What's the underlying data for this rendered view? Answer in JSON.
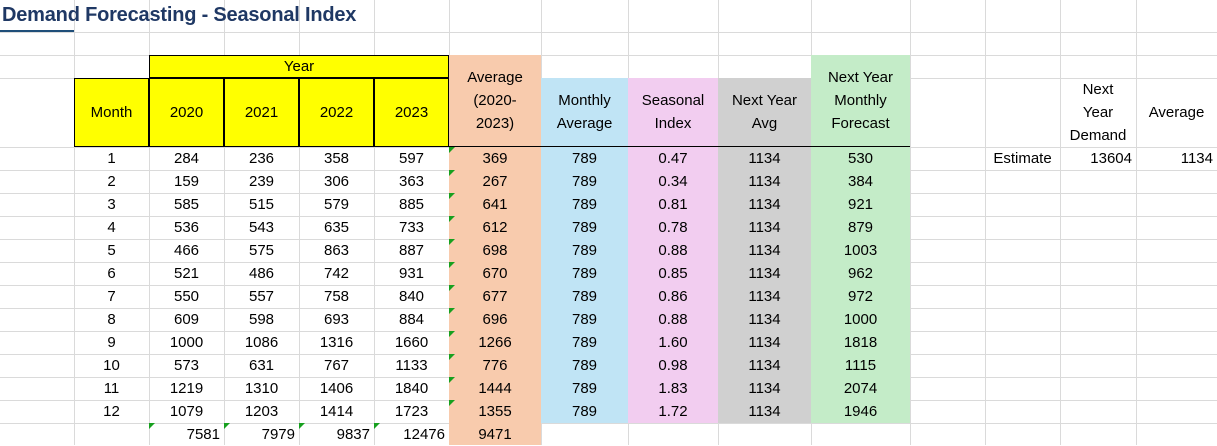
{
  "sheet": {
    "title": "Demand Forecasting - Seasonal Index"
  },
  "colors": {
    "yellow": "#ffff00",
    "orange": "#f8cbad",
    "blue": "#c0e4f5",
    "pink": "#f2cdf0",
    "gray": "#d0d0d0",
    "green": "#c4ecc8",
    "title": "#1f3864"
  },
  "headers": {
    "year": "Year",
    "month": "Month",
    "years": [
      "2020",
      "2021",
      "2022",
      "2023"
    ],
    "average": "Average (2020-2023)",
    "monthly_average": "Monthly Average",
    "seasonal_index": "Seasonal Index",
    "next_year_avg": "Next Year Avg",
    "next_year_forecast": "Next Year Monthly Forecast"
  },
  "rows": [
    {
      "month": "1",
      "y2020": "284",
      "y2021": "236",
      "y2022": "358",
      "y2023": "597",
      "avg": "369",
      "mavg": "789",
      "si": "0.47",
      "nya": "1134",
      "fc": "530"
    },
    {
      "month": "2",
      "y2020": "159",
      "y2021": "239",
      "y2022": "306",
      "y2023": "363",
      "avg": "267",
      "mavg": "789",
      "si": "0.34",
      "nya": "1134",
      "fc": "384"
    },
    {
      "month": "3",
      "y2020": "585",
      "y2021": "515",
      "y2022": "579",
      "y2023": "885",
      "avg": "641",
      "mavg": "789",
      "si": "0.81",
      "nya": "1134",
      "fc": "921"
    },
    {
      "month": "4",
      "y2020": "536",
      "y2021": "543",
      "y2022": "635",
      "y2023": "733",
      "avg": "612",
      "mavg": "789",
      "si": "0.78",
      "nya": "1134",
      "fc": "879"
    },
    {
      "month": "5",
      "y2020": "466",
      "y2021": "575",
      "y2022": "863",
      "y2023": "887",
      "avg": "698",
      "mavg": "789",
      "si": "0.88",
      "nya": "1134",
      "fc": "1003"
    },
    {
      "month": "6",
      "y2020": "521",
      "y2021": "486",
      "y2022": "742",
      "y2023": "931",
      "avg": "670",
      "mavg": "789",
      "si": "0.85",
      "nya": "1134",
      "fc": "962"
    },
    {
      "month": "7",
      "y2020": "550",
      "y2021": "557",
      "y2022": "758",
      "y2023": "840",
      "avg": "677",
      "mavg": "789",
      "si": "0.86",
      "nya": "1134",
      "fc": "972"
    },
    {
      "month": "8",
      "y2020": "609",
      "y2021": "598",
      "y2022": "693",
      "y2023": "884",
      "avg": "696",
      "mavg": "789",
      "si": "0.88",
      "nya": "1134",
      "fc": "1000"
    },
    {
      "month": "9",
      "y2020": "1000",
      "y2021": "1086",
      "y2022": "1316",
      "y2023": "1660",
      "avg": "1266",
      "mavg": "789",
      "si": "1.60",
      "nya": "1134",
      "fc": "1818"
    },
    {
      "month": "10",
      "y2020": "573",
      "y2021": "631",
      "y2022": "767",
      "y2023": "1133",
      "avg": "776",
      "mavg": "789",
      "si": "0.98",
      "nya": "1134",
      "fc": "1115"
    },
    {
      "month": "11",
      "y2020": "1219",
      "y2021": "1310",
      "y2022": "1406",
      "y2023": "1840",
      "avg": "1444",
      "mavg": "789",
      "si": "1.83",
      "nya": "1134",
      "fc": "2074"
    },
    {
      "month": "12",
      "y2020": "1079",
      "y2021": "1203",
      "y2022": "1414",
      "y2023": "1723",
      "avg": "1355",
      "mavg": "789",
      "si": "1.72",
      "nya": "1134",
      "fc": "1946"
    }
  ],
  "totals": {
    "y2020": "7581",
    "y2021": "7979",
    "y2022": "9837",
    "y2023": "12476",
    "avg": "9471"
  },
  "side": {
    "next_year_demand_header": "Next Year Demand",
    "average_header": "Average",
    "estimate_label": "Estimate",
    "estimate_value": "13604",
    "average_value": "1134"
  }
}
